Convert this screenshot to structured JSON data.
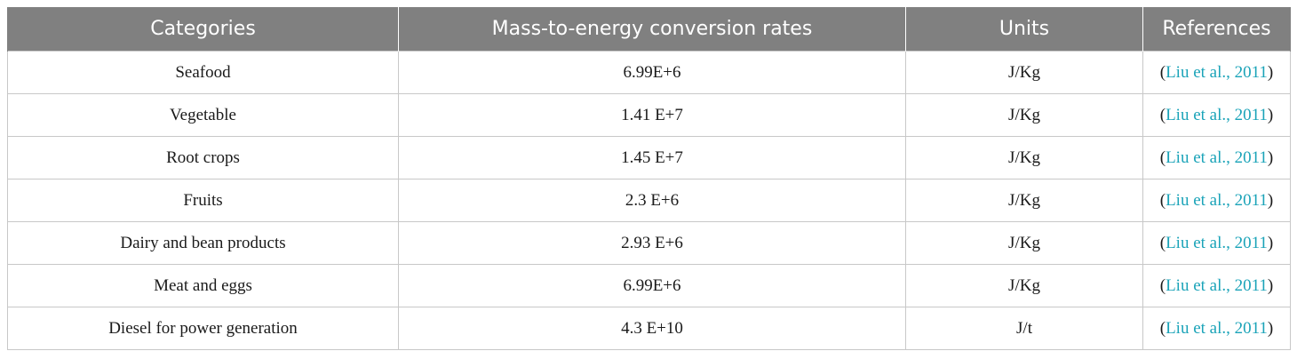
{
  "table": {
    "headers": [
      "Categories",
      "Mass-to-energy conversion rates",
      "Units",
      "References"
    ],
    "rows": [
      {
        "category": "Seafood",
        "rate": "6.99E+6",
        "unit": "J/Kg",
        "ref_open": "(",
        "ref_link": "Liu et al., 2011",
        "ref_close": ")"
      },
      {
        "category": "Vegetable",
        "rate": "1.41 E+7",
        "unit": "J/Kg",
        "ref_open": "(",
        "ref_link": "Liu et al., 2011",
        "ref_close": ")"
      },
      {
        "category": "Root crops",
        "rate": "1.45 E+7",
        "unit": "J/Kg",
        "ref_open": "(",
        "ref_link": "Liu et al., 2011",
        "ref_close": ")"
      },
      {
        "category": "Fruits",
        "rate": "2.3 E+6",
        "unit": "J/Kg",
        "ref_open": "(",
        "ref_link": "Liu et al., 2011",
        "ref_close": ")"
      },
      {
        "category": "Dairy and bean products",
        "rate": "2.93 E+6",
        "unit": "J/Kg",
        "ref_open": "(",
        "ref_link": "Liu et al., 2011",
        "ref_close": ")"
      },
      {
        "category": "Meat and eggs",
        "rate": "6.99E+6",
        "unit": "J/Kg",
        "ref_open": "(",
        "ref_link": "Liu et al., 2011",
        "ref_close": ")"
      },
      {
        "category": "Diesel for power generation",
        "rate": "4.3 E+10",
        "unit": "J/t",
        "ref_open": "(",
        "ref_link": "Liu et al., 2011",
        "ref_close": ")"
      }
    ]
  },
  "colors": {
    "header_bg": "#808080",
    "header_text": "#ffffff",
    "link": "#1aa3b8",
    "border": "#c8c8c8"
  }
}
